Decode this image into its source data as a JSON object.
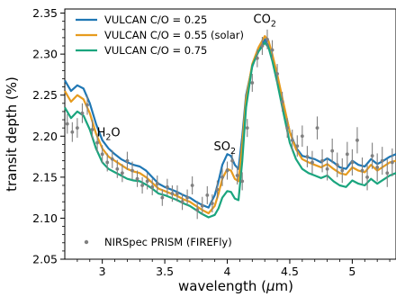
{
  "chart_data": {
    "type": "line",
    "xlabel": "wavelength (",
    "xlabel_symbol": "μ",
    "xlabel_unit": "m)",
    "ylabel": "transit depth (%)",
    "xlim": [
      2.7,
      5.35
    ],
    "ylim": [
      2.05,
      2.355
    ],
    "x_ticks": [
      3,
      3.5,
      4,
      4.5,
      5
    ],
    "x_tick_labels": [
      "3",
      "3.5",
      "4",
      "4.5",
      "5"
    ],
    "y_ticks": [
      2.05,
      2.1,
      2.15,
      2.2,
      2.25,
      2.3,
      2.35
    ],
    "y_tick_labels": [
      "2.05",
      "2.10",
      "2.15",
      "2.20",
      "2.25",
      "2.30",
      "2.35"
    ],
    "annotations": [
      {
        "text": "H",
        "sub": "2",
        "tail": "O",
        "x": 3.05,
        "y": 2.2
      },
      {
        "text": "SO",
        "sub": "2",
        "tail": "",
        "x": 3.98,
        "y": 2.183
      },
      {
        "text": "CO",
        "sub": "2",
        "tail": "",
        "x": 4.3,
        "y": 2.338
      }
    ],
    "legend_position": "top-left",
    "series": [
      {
        "name": "VULCAN C/O = 0.25",
        "color": "#1f77b4",
        "x": [
          2.7,
          2.75,
          2.8,
          2.85,
          2.9,
          2.95,
          3.0,
          3.05,
          3.1,
          3.15,
          3.2,
          3.25,
          3.3,
          3.35,
          3.4,
          3.45,
          3.5,
          3.55,
          3.6,
          3.65,
          3.7,
          3.75,
          3.8,
          3.85,
          3.9,
          3.93,
          3.96,
          4.0,
          4.03,
          4.06,
          4.09,
          4.12,
          4.15,
          4.2,
          4.25,
          4.3,
          4.33,
          4.36,
          4.4,
          4.45,
          4.5,
          4.55,
          4.6,
          4.65,
          4.7,
          4.75,
          4.8,
          4.85,
          4.9,
          4.95,
          5.0,
          5.05,
          5.1,
          5.15,
          5.2,
          5.25,
          5.3,
          5.35
        ],
        "y": [
          2.268,
          2.255,
          2.262,
          2.258,
          2.24,
          2.215,
          2.195,
          2.185,
          2.178,
          2.172,
          2.168,
          2.165,
          2.163,
          2.158,
          2.15,
          2.142,
          2.138,
          2.135,
          2.132,
          2.128,
          2.125,
          2.12,
          2.116,
          2.113,
          2.128,
          2.145,
          2.165,
          2.178,
          2.176,
          2.165,
          2.16,
          2.2,
          2.25,
          2.285,
          2.305,
          2.318,
          2.31,
          2.298,
          2.272,
          2.238,
          2.205,
          2.186,
          2.176,
          2.174,
          2.172,
          2.168,
          2.173,
          2.168,
          2.162,
          2.16,
          2.17,
          2.165,
          2.163,
          2.172,
          2.166,
          2.17,
          2.175,
          2.178
        ]
      },
      {
        "name": "VULCAN C/O = 0.55 (solar)",
        "color": "#e69b1e",
        "x": [
          2.7,
          2.75,
          2.8,
          2.85,
          2.9,
          2.95,
          3.0,
          3.05,
          3.1,
          3.15,
          3.2,
          3.25,
          3.3,
          3.35,
          3.4,
          3.45,
          3.5,
          3.55,
          3.6,
          3.65,
          3.7,
          3.75,
          3.8,
          3.85,
          3.9,
          3.93,
          3.96,
          4.0,
          4.03,
          4.06,
          4.09,
          4.12,
          4.15,
          4.2,
          4.25,
          4.3,
          4.33,
          4.36,
          4.4,
          4.45,
          4.5,
          4.55,
          4.6,
          4.65,
          4.7,
          4.75,
          4.8,
          4.85,
          4.9,
          4.95,
          5.0,
          5.05,
          5.1,
          5.15,
          5.2,
          5.25,
          5.3,
          5.35
        ],
        "y": [
          2.255,
          2.242,
          2.25,
          2.245,
          2.228,
          2.203,
          2.185,
          2.175,
          2.17,
          2.165,
          2.16,
          2.157,
          2.155,
          2.15,
          2.143,
          2.136,
          2.133,
          2.13,
          2.127,
          2.123,
          2.12,
          2.115,
          2.11,
          2.106,
          2.115,
          2.13,
          2.148,
          2.16,
          2.158,
          2.148,
          2.145,
          2.19,
          2.245,
          2.288,
          2.308,
          2.322,
          2.316,
          2.3,
          2.275,
          2.24,
          2.205,
          2.184,
          2.172,
          2.168,
          2.165,
          2.162,
          2.166,
          2.16,
          2.155,
          2.153,
          2.162,
          2.158,
          2.156,
          2.165,
          2.158,
          2.163,
          2.168,
          2.17
        ]
      },
      {
        "name": "VULCAN C/O = 0.75",
        "color": "#1aa57e",
        "x": [
          2.7,
          2.75,
          2.8,
          2.85,
          2.9,
          2.95,
          3.0,
          3.05,
          3.1,
          3.15,
          3.2,
          3.25,
          3.3,
          3.35,
          3.4,
          3.45,
          3.5,
          3.55,
          3.6,
          3.65,
          3.7,
          3.75,
          3.8,
          3.85,
          3.9,
          3.93,
          3.96,
          4.0,
          4.03,
          4.06,
          4.09,
          4.12,
          4.15,
          4.2,
          4.25,
          4.3,
          4.33,
          4.36,
          4.4,
          4.45,
          4.5,
          4.55,
          4.6,
          4.65,
          4.7,
          4.75,
          4.8,
          4.85,
          4.9,
          4.95,
          5.0,
          5.05,
          5.1,
          5.15,
          5.2,
          5.25,
          5.3,
          5.35
        ],
        "y": [
          2.235,
          2.222,
          2.23,
          2.225,
          2.208,
          2.185,
          2.168,
          2.16,
          2.156,
          2.152,
          2.148,
          2.146,
          2.145,
          2.141,
          2.136,
          2.13,
          2.128,
          2.125,
          2.122,
          2.118,
          2.115,
          2.11,
          2.105,
          2.101,
          2.104,
          2.112,
          2.125,
          2.133,
          2.132,
          2.124,
          2.122,
          2.17,
          2.235,
          2.286,
          2.303,
          2.314,
          2.308,
          2.292,
          2.265,
          2.228,
          2.192,
          2.172,
          2.16,
          2.155,
          2.152,
          2.149,
          2.152,
          2.145,
          2.14,
          2.138,
          2.146,
          2.142,
          2.14,
          2.148,
          2.142,
          2.147,
          2.152,
          2.155
        ]
      }
    ],
    "observations": {
      "name": "NIRSpec PRISM (FIREFly)",
      "color": "#808080",
      "x": [
        2.72,
        2.76,
        2.8,
        2.84,
        2.88,
        2.92,
        2.96,
        3.0,
        3.04,
        3.08,
        3.12,
        3.16,
        3.2,
        3.24,
        3.28,
        3.32,
        3.36,
        3.4,
        3.44,
        3.48,
        3.52,
        3.56,
        3.6,
        3.64,
        3.68,
        3.72,
        3.76,
        3.8,
        3.84,
        3.88,
        3.92,
        3.96,
        4.0,
        4.04,
        4.08,
        4.12,
        4.16,
        4.2,
        4.24,
        4.28,
        4.32,
        4.36,
        4.4,
        4.44,
        4.48,
        4.52,
        4.56,
        4.6,
        4.64,
        4.68,
        4.72,
        4.76,
        4.8,
        4.84,
        4.88,
        4.92,
        4.96,
        5.0,
        5.04,
        5.08,
        5.12,
        5.16,
        5.2,
        5.24,
        5.28,
        5.32
      ],
      "y": [
        2.215,
        2.205,
        2.21,
        2.228,
        2.238,
        2.208,
        2.192,
        2.178,
        2.168,
        2.172,
        2.16,
        2.155,
        2.17,
        2.158,
        2.148,
        2.14,
        2.145,
        2.138,
        2.142,
        2.125,
        2.138,
        2.13,
        2.13,
        2.12,
        2.125,
        2.14,
        2.11,
        2.115,
        2.128,
        2.118,
        2.135,
        2.15,
        2.158,
        2.17,
        2.152,
        2.145,
        2.21,
        2.265,
        2.295,
        2.31,
        2.318,
        2.305,
        2.276,
        2.242,
        2.21,
        2.195,
        2.188,
        2.2,
        2.175,
        2.168,
        2.21,
        2.17,
        2.16,
        2.182,
        2.165,
        2.158,
        2.178,
        2.168,
        2.195,
        2.158,
        2.15,
        2.176,
        2.162,
        2.17,
        2.155,
        2.168
      ],
      "err": [
        0.012,
        0.012,
        0.012,
        0.012,
        0.012,
        0.012,
        0.011,
        0.011,
        0.011,
        0.011,
        0.011,
        0.011,
        0.011,
        0.011,
        0.01,
        0.01,
        0.01,
        0.01,
        0.01,
        0.01,
        0.01,
        0.01,
        0.01,
        0.01,
        0.01,
        0.011,
        0.011,
        0.011,
        0.011,
        0.011,
        0.011,
        0.011,
        0.011,
        0.011,
        0.011,
        0.011,
        0.011,
        0.011,
        0.011,
        0.011,
        0.012,
        0.012,
        0.012,
        0.012,
        0.012,
        0.013,
        0.013,
        0.013,
        0.013,
        0.014,
        0.014,
        0.014,
        0.014,
        0.015,
        0.015,
        0.015,
        0.015,
        0.016,
        0.016,
        0.016,
        0.016,
        0.016,
        0.017,
        0.017,
        0.017,
        0.017
      ],
      "xerr": 0.012
    }
  }
}
